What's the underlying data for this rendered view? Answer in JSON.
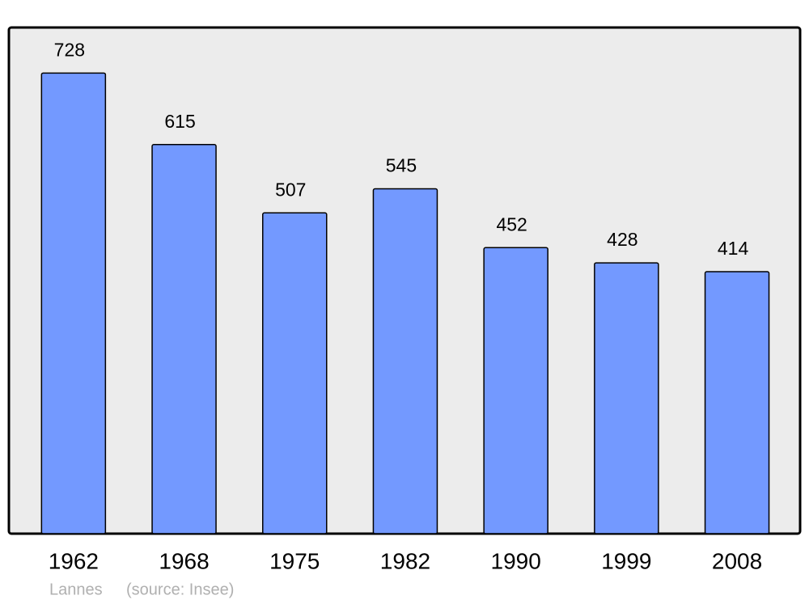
{
  "chart_data": {
    "type": "bar",
    "categories": [
      "1962",
      "1968",
      "1975",
      "1982",
      "1990",
      "1999",
      "2008"
    ],
    "values": [
      728,
      615,
      507,
      545,
      452,
      428,
      414
    ],
    "color": "#7399ff",
    "ylim": [
      0,
      800
    ],
    "caption": "Lannes",
    "source": "(source: Insee)"
  }
}
